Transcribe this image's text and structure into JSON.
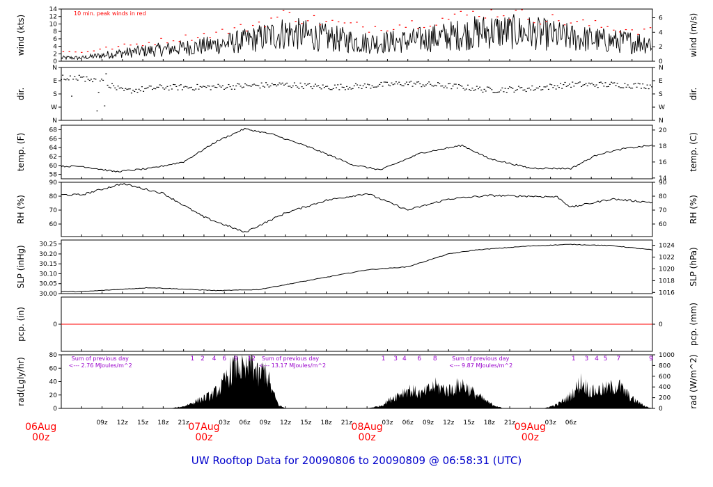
{
  "title": "UW Rooftop Data for 20090806  to  20090809 @ 06:58:31  (UTC)",
  "colors": {
    "accent_red": "#ff0000",
    "title_blue": "#0000cc",
    "annot_purple": "#9900cc",
    "ink": "#000000"
  },
  "chart_data": [
    {
      "type": "line",
      "id": "wind",
      "ylabel_left": "wind (kts)",
      "ylabel_right": "wind (m/s)",
      "ylim": [
        0,
        14
      ],
      "yticks": [
        0,
        2,
        4,
        6,
        8,
        10,
        12,
        14
      ],
      "right_ylim": [
        0,
        7.2
      ],
      "right_yticks": [
        0,
        2,
        4,
        6
      ],
      "annotation": "10 min. peak winds in red",
      "series": [
        {
          "style": "mean",
          "color": "#000000"
        },
        {
          "style": "peak",
          "color": "#ff0000"
        }
      ],
      "x_hours": [
        0,
        6,
        12,
        18,
        24,
        30,
        36,
        42,
        48,
        54,
        60,
        66,
        72,
        78,
        84
      ],
      "mean": [
        1.0,
        2.5,
        3.5,
        4.5,
        6.0,
        8.5,
        7.0,
        5.5,
        6.0,
        7.5,
        9.0,
        8.5,
        7.0,
        6.0,
        5.5
      ],
      "peak": [
        2.5,
        4.0,
        5.5,
        7.0,
        9.0,
        12.5,
        10.5,
        9.0,
        10.0,
        11.5,
        13.5,
        12.0,
        10.5,
        9.0,
        8.0
      ]
    },
    {
      "type": "scatter",
      "id": "dir",
      "ylabel_left": "dir.",
      "ylabel_right": "dir.",
      "ylim": [
        0,
        4
      ],
      "ytick_labels": [
        "N",
        "E",
        "S",
        "W",
        "N"
      ],
      "right_ytick_labels": [
        "N",
        "E",
        "S",
        "W",
        "N"
      ],
      "x_hours": [
        0,
        3,
        6,
        12,
        18,
        24,
        30,
        36,
        42,
        48,
        54,
        60,
        66,
        72,
        78,
        84
      ],
      "values": [
        3.2,
        3.0,
        2.2,
        2.5,
        2.5,
        2.6,
        2.7,
        2.5,
        2.6,
        2.8,
        2.6,
        2.3,
        2.4,
        2.7,
        2.7,
        2.6
      ]
    },
    {
      "type": "line",
      "id": "temp",
      "ylabel_left": "temp. (F)",
      "ylabel_right": "temp. (C)",
      "ylim": [
        57,
        69
      ],
      "yticks": [
        58,
        60,
        62,
        64,
        66,
        68
      ],
      "right_ylim": [
        13.9,
        20.6
      ],
      "right_yticks": [
        14,
        16,
        18,
        20
      ],
      "x_hours": [
        0,
        5,
        10,
        15,
        20,
        24,
        28,
        34,
        40,
        44,
        50,
        56,
        60,
        66,
        72,
        76,
        80,
        84
      ],
      "values": [
        59.8,
        58.6,
        59.3,
        60.8,
        65.5,
        68.2,
        67.0,
        63.8,
        60.1,
        59.0,
        62.8,
        64.5,
        61.5,
        59.4,
        59.3,
        62.5,
        63.8,
        64.5
      ]
    },
    {
      "type": "line",
      "id": "rh",
      "ylabel_left": "RH (%)",
      "ylabel_right": "RH (%)",
      "ylim": [
        51,
        90
      ],
      "yticks": [
        60,
        70,
        80,
        90
      ],
      "right_ylim": [
        51,
        90
      ],
      "right_yticks": [
        60,
        70,
        80,
        90
      ],
      "x_hours": [
        0,
        6,
        12,
        18,
        24,
        30,
        36,
        42,
        48,
        54,
        60,
        66,
        70,
        72,
        78,
        84
      ],
      "values": [
        81.0,
        89.0,
        82.0,
        65.0,
        54.0,
        68.0,
        77.0,
        82.0,
        70.0,
        78.0,
        80.5,
        80.0,
        79.5,
        72.0,
        78.0,
        75.5
      ]
    },
    {
      "type": "line",
      "id": "slp",
      "ylabel_left": "SLP (inHg)",
      "ylabel_right": "SLP (hPa)",
      "ylim": [
        30.0,
        30.27
      ],
      "yticks": [
        30.0,
        30.05,
        30.1,
        30.15,
        30.2,
        30.25
      ],
      "yticks_labels": [
        "30.00",
        "30.05",
        "30.10",
        "30.15",
        "30.20",
        "30.25"
      ],
      "right_ylim": [
        1015.8,
        1024.9
      ],
      "right_yticks": [
        1016,
        1018,
        1020,
        1022,
        1024
      ],
      "x_hours": [
        0,
        10,
        20,
        26,
        34,
        42,
        48,
        54,
        58,
        66,
        72,
        78,
        84
      ],
      "values": [
        30.01,
        30.03,
        30.015,
        30.02,
        30.07,
        30.12,
        30.135,
        30.2,
        30.22,
        30.24,
        30.248,
        30.242,
        30.22
      ]
    },
    {
      "type": "line",
      "id": "pcp",
      "ylabel_left": "pcp. (in)",
      "ylabel_right": "pcp. (mm)",
      "ylim": [
        -1,
        1
      ],
      "yticks": [
        0
      ],
      "right_yticks": [
        0
      ],
      "x_hours": [
        0,
        84
      ],
      "values": [
        0,
        0
      ],
      "color": "#ff0000"
    },
    {
      "type": "area",
      "id": "rad",
      "ylabel_left": "rad(Lgly/hr)",
      "ylabel_right": "rad (W/m^2)",
      "ylim": [
        0,
        80
      ],
      "yticks": [
        0,
        20,
        40,
        60,
        80
      ],
      "right_ylim": [
        0,
        1000
      ],
      "right_yticks": [
        0,
        200,
        400,
        600,
        800,
        1000
      ],
      "x_hours": [
        0,
        13,
        15,
        17,
        19,
        20.5,
        22,
        23,
        24,
        25,
        26,
        27,
        28,
        29,
        30,
        31,
        32,
        42,
        44,
        46,
        48,
        50,
        52,
        54,
        56,
        58,
        60,
        62,
        68,
        70,
        72,
        73.5,
        75,
        77,
        79,
        81,
        83,
        84
      ],
      "values": [
        0,
        0,
        3,
        12,
        20,
        32,
        60,
        72,
        55,
        75,
        48,
        62,
        28,
        5,
        0,
        0,
        0,
        0,
        4,
        18,
        30,
        22,
        35,
        28,
        38,
        22,
        8,
        0,
        0,
        6,
        20,
        42,
        26,
        30,
        36,
        15,
        3,
        0
      ],
      "day_labels": [
        {
          "text_line1": "Sum of previous day",
          "text_line2": "<--- 2.76 MJoules/m^2",
          "x_hours": -1.5
        },
        {
          "text_line1": "Sum of previous day",
          "text_line2": "<--- 13.17 MJoules/m^2",
          "x_hours": 26.5
        },
        {
          "text_line1": "Sum of previous day",
          "text_line2": "<--- 9.87 MJoules/m^2",
          "x_hours": 54.5
        }
      ],
      "hour_marks": [
        {
          "label": "1",
          "x_hours": 16.3
        },
        {
          "label": "2",
          "x_hours": 17.8
        },
        {
          "label": "4",
          "x_hours": 19.5
        },
        {
          "label": "6",
          "x_hours": 21.0
        },
        {
          "label": "9",
          "x_hours": 22.7
        },
        {
          "label": "12",
          "x_hours": 25.0
        },
        {
          "label": "1",
          "x_hours": 44.4
        },
        {
          "label": "3",
          "x_hours": 46.2
        },
        {
          "label": "4",
          "x_hours": 47.5
        },
        {
          "label": "6",
          "x_hours": 49.7
        },
        {
          "label": "8",
          "x_hours": 52.0
        },
        {
          "label": "1",
          "x_hours": 72.4
        },
        {
          "label": "3",
          "x_hours": 74.3
        },
        {
          "label": "4",
          "x_hours": 75.8
        },
        {
          "label": "5",
          "x_hours": 77.1
        },
        {
          "label": "7",
          "x_hours": 79.0
        },
        {
          "label": "9",
          "x_hours": 83.8
        }
      ]
    }
  ],
  "x_axis": {
    "hour_labels": [
      "09z",
      "12z",
      "15z",
      "18z",
      "21z",
      "03z",
      "06z",
      "09z",
      "12z",
      "15z",
      "18z",
      "21z",
      "03z",
      "06z",
      "09z",
      "12z",
      "15z",
      "18z",
      "21z",
      "03z",
      "06z"
    ],
    "hour_label_x": [
      3,
      6,
      9,
      12,
      15,
      21,
      24,
      27,
      30,
      33,
      36,
      39,
      45,
      48,
      51,
      54,
      57,
      60,
      63,
      69,
      72
    ],
    "day_labels": [
      {
        "date": "06Aug",
        "time": "00z",
        "x_hours": -6
      },
      {
        "date": "07Aug",
        "time": "00z",
        "x_hours": 18
      },
      {
        "date": "08Aug",
        "time": "00z",
        "x_hours": 42
      },
      {
        "date": "09Aug",
        "time": "00z",
        "x_hours": 66
      }
    ]
  }
}
